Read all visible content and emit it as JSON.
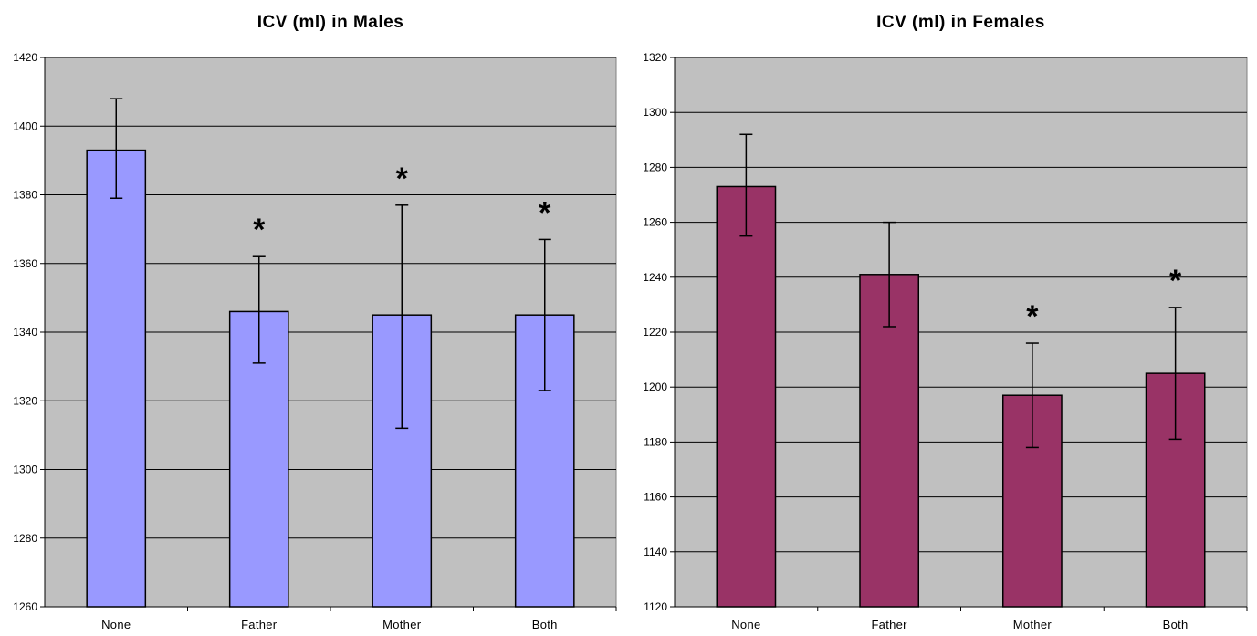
{
  "chart_data": [
    {
      "type": "bar",
      "title": "ICV (ml) in Males",
      "categories": [
        "None",
        "Father",
        "Mother",
        "Both"
      ],
      "values": [
        1393,
        1346,
        1345,
        1345
      ],
      "error_low": [
        1379,
        1331,
        1312,
        1323
      ],
      "error_high": [
        1408,
        1362,
        1377,
        1367
      ],
      "annotations": [
        "",
        "*",
        "*",
        "*"
      ],
      "ylim": [
        1260,
        1420
      ],
      "yticks": [
        1260,
        1280,
        1300,
        1320,
        1340,
        1360,
        1380,
        1400,
        1420
      ],
      "xlabel": "",
      "ylabel": "",
      "grid": true,
      "colors": {
        "bar": "#9999ff",
        "plot_bg": "#c0c0c0"
      }
    },
    {
      "type": "bar",
      "title": "ICV (ml) in Females",
      "categories": [
        "None",
        "Father",
        "Mother",
        "Both"
      ],
      "values": [
        1273,
        1241,
        1197,
        1205
      ],
      "error_low": [
        1255,
        1222,
        1178,
        1181
      ],
      "error_high": [
        1292,
        1260,
        1216,
        1229
      ],
      "annotations": [
        "",
        "",
        "*",
        "*"
      ],
      "ylim": [
        1120,
        1320
      ],
      "yticks": [
        1120,
        1140,
        1160,
        1180,
        1200,
        1220,
        1240,
        1260,
        1280,
        1300,
        1320
      ],
      "xlabel": "",
      "ylabel": "",
      "grid": true,
      "colors": {
        "bar": "#993366",
        "plot_bg": "#c0c0c0"
      }
    }
  ]
}
